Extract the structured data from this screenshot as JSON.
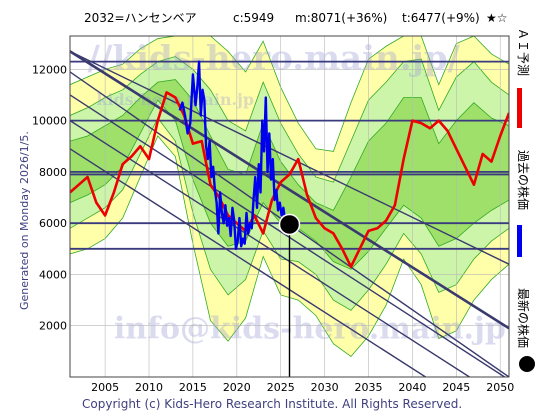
{
  "header": {
    "symbol": "2032=ハンセンベア",
    "current": "c:5949",
    "mid": "m:8071(+36%)",
    "target": "t:6477(+9%)",
    "rating": "★☆"
  },
  "side_note": "Generated on Monday 2026/1/5.",
  "copyright": "Copyright (c) Kids-Hero Research Institute. All Rights Reserved.",
  "watermark": {
    "top": "//kids-hero.main.jp/",
    "mid": "kids-hero.main.jp",
    "bottom": "info@kids-hero.main.jp"
  },
  "legend": {
    "forecast": "ＡＩ予測",
    "past": "過去の株価",
    "latest": "最新の株価"
  },
  "colors": {
    "forecast": "#ee0000",
    "past": "#0000ee",
    "latest": "#000000",
    "band_yellow": "#ffffaa",
    "band_green_light": "#ccf5aa",
    "band_green": "#9ee06a",
    "band_line": "#33aa22",
    "trend_line": "#3a3a6e",
    "h_line": "#3a3a7e"
  },
  "chart_data": {
    "type": "line",
    "x_ticks": [
      2005,
      2010,
      2015,
      2020,
      2025,
      2030,
      2035,
      2040,
      2045,
      2050
    ],
    "y_ticks": [
      2000,
      4000,
      6000,
      8000,
      10000,
      12000
    ],
    "xlim": [
      2001.0,
      2051.0
    ],
    "ylim": [
      0,
      13300
    ],
    "grid": true,
    "h_lines": [
      5000,
      6000,
      7900,
      8000,
      10000,
      12300
    ],
    "latest_point": {
      "x": 2026.0,
      "y": 5949
    },
    "trend_lines": [
      {
        "x1": 2001.0,
        "y1": 12700,
        "x2": 2051.0,
        "y2": 4400
      },
      {
        "x1": 2001.0,
        "y1": 12700,
        "x2": 2051.0,
        "y2": 1900
      },
      {
        "x1": 2001.0,
        "y1": 11900,
        "x2": 2051.0,
        "y2": 0
      },
      {
        "x1": 2001.0,
        "y1": 11000,
        "x2": 2050.5,
        "y2": 0
      },
      {
        "x1": 2001.0,
        "y1": 10000,
        "x2": 2046.5,
        "y2": 0
      },
      {
        "x1": 2001.0,
        "y1": 8900,
        "x2": 2041.5,
        "y2": 0
      }
    ],
    "band_x": [
      2001,
      2003,
      2005,
      2007,
      2009,
      2011,
      2013,
      2015,
      2017,
      2019,
      2021,
      2023,
      2025,
      2027,
      2029,
      2031,
      2033,
      2035,
      2037,
      2039,
      2041,
      2043,
      2045,
      2047,
      2049,
      2051
    ],
    "band_outer_low": [
      4800,
      5000,
      5400,
      6200,
      7800,
      9400,
      8600,
      5200,
      2200,
      1400,
      2300,
      4700,
      3200,
      3000,
      2400,
      1300,
      800,
      1600,
      2800,
      4600,
      3600,
      1500,
      1800,
      3000,
      3800,
      4400
    ],
    "band_outer_high": [
      11400,
      11700,
      12000,
      12200,
      12800,
      13200,
      13300,
      13300,
      13300,
      12700,
      11900,
      13100,
      11300,
      9900,
      8900,
      8800,
      10700,
      12400,
      12900,
      13300,
      13300,
      11400,
      13000,
      13300,
      12600,
      12200
    ],
    "band_mid_low": [
      5800,
      6200,
      6600,
      7300,
      8700,
      10100,
      9200,
      6400,
      4200,
      3200,
      3800,
      5700,
      4600,
      4500,
      4000,
      3000,
      2600,
      3400,
      4400,
      5600,
      4800,
      3300,
      3600,
      4600,
      5300,
      5800
    ],
    "band_mid_high": [
      10200,
      10500,
      10900,
      11200,
      11800,
      12300,
      12500,
      12000,
      11200,
      10000,
      9600,
      11500,
      9900,
      8700,
      7800,
      7600,
      9200,
      10800,
      11500,
      12300,
      12400,
      10400,
      11700,
      12300,
      11500,
      11000
    ],
    "band_inner_low": [
      6800,
      7100,
      7500,
      8200,
      9500,
      10800,
      10000,
      7700,
      6000,
      5100,
      5300,
      6800,
      6000,
      5800,
      5300,
      4500,
      4200,
      4900,
      5800,
      6700,
      6200,
      5100,
      5400,
      6000,
      6500,
      6900
    ],
    "band_inner_high": [
      9200,
      9400,
      9800,
      10200,
      10900,
      11500,
      11600,
      10800,
      9400,
      8100,
      7900,
      9900,
      8400,
      7500,
      6800,
      6500,
      7800,
      9200,
      9900,
      10900,
      10900,
      9100,
      10000,
      10700,
      10100,
      9800
    ],
    "series": [
      {
        "name": "過去の株価",
        "x": [
          2013.5,
          2013.8,
          2014.1,
          2014.4,
          2014.7,
          2015.0,
          2015.3,
          2015.5,
          2015.7,
          2015.9,
          2016.1,
          2016.3,
          2016.5,
          2016.7,
          2016.9,
          2017.1,
          2017.3,
          2017.5,
          2017.7,
          2017.9,
          2018.1,
          2018.3,
          2018.5,
          2018.7,
          2018.9,
          2019.1,
          2019.3,
          2019.5,
          2019.7,
          2019.9,
          2020.1,
          2020.3,
          2020.5,
          2020.7,
          2020.9,
          2021.1,
          2021.3,
          2021.5,
          2021.7,
          2021.9,
          2022.1,
          2022.3,
          2022.5,
          2022.7,
          2022.9,
          2023.1,
          2023.3,
          2023.5,
          2023.7,
          2023.9,
          2024.1,
          2024.3,
          2024.5,
          2024.7,
          2024.9,
          2025.1,
          2025.3,
          2025.5,
          2025.7,
          2026.0
        ],
        "values": [
          10400,
          10700,
          10200,
          9500,
          9900,
          11800,
          10600,
          11300,
          12300,
          10200,
          11200,
          10800,
          9000,
          8500,
          9200,
          7800,
          8200,
          7300,
          6800,
          5600,
          7200,
          6400,
          6000,
          6700,
          5900,
          6200,
          5500,
          6600,
          6100,
          5000,
          5300,
          6200,
          5100,
          5400,
          5200,
          6400,
          5600,
          6000,
          5800,
          6900,
          7800,
          6600,
          8300,
          7200,
          10000,
          8800,
          10900,
          8000,
          9500,
          7700,
          8500,
          6900,
          7300,
          6500,
          6800,
          6300,
          6600,
          6100,
          6000,
          5949
        ]
      },
      {
        "name": "ＡＩ予測",
        "x": [
          2001,
          2002,
          2003,
          2004,
          2005,
          2006,
          2007,
          2008,
          2009,
          2010,
          2011,
          2012,
          2013,
          2014,
          2015,
          2016,
          2017,
          2018,
          2019,
          2020,
          2021,
          2022,
          2023,
          2024,
          2025,
          2026,
          2027,
          2028,
          2029,
          2030,
          2031,
          2032,
          2033,
          2034,
          2035,
          2036,
          2037,
          2038,
          2039,
          2040,
          2041,
          2042,
          2043,
          2044,
          2045,
          2046,
          2047,
          2048,
          2049,
          2050,
          2051
        ],
        "values": [
          7200,
          7500,
          7800,
          6800,
          6300,
          7200,
          8300,
          8600,
          9000,
          8500,
          10000,
          11100,
          10900,
          10200,
          9100,
          9200,
          7500,
          7000,
          6300,
          6000,
          5700,
          6300,
          5600,
          6900,
          7600,
          7900,
          8500,
          7100,
          6200,
          5800,
          5600,
          5000,
          4300,
          5000,
          5700,
          5800,
          6100,
          6700,
          8500,
          10000,
          9900,
          9700,
          10000,
          9600,
          8900,
          8200,
          7500,
          8700,
          8400,
          9400,
          10300
        ]
      }
    ]
  }
}
